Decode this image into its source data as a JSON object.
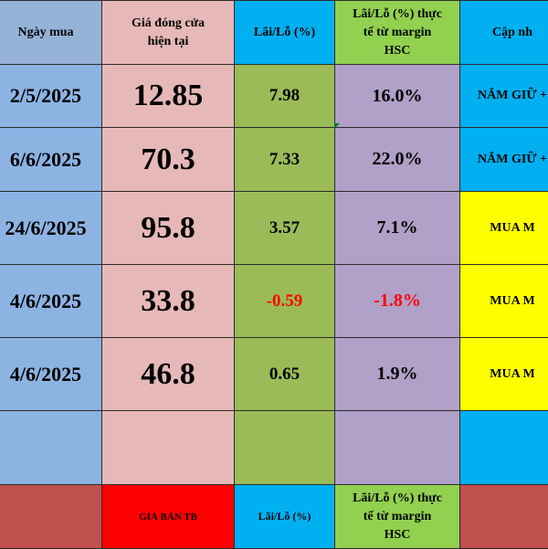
{
  "headers": {
    "date": "Ngày mua",
    "price": "Giá đóng cửa\nhiện tại",
    "pl": "Lãi/Lỗ (%)",
    "real": "Lãi/Lỗ (%) thực\ntế từ margin\nHSC",
    "update": "Cập nh"
  },
  "rows": [
    {
      "date": "2/5/2025",
      "price": "12.85",
      "pl": "7.98",
      "real": "16.0%",
      "update": "NẮM GIỮ +"
    },
    {
      "date": "6/6/2025",
      "price": "70.3",
      "pl": "7.33",
      "real": "22.0%",
      "update": "NẮM GIỮ +"
    },
    {
      "date": "24/6/2025",
      "price": "95.8",
      "pl": "3.57",
      "real": "7.1%",
      "update": "MUA M"
    },
    {
      "date": "4/6/2025",
      "price": "33.8",
      "pl": "-0.59",
      "real": "-1.8%",
      "update": "MUA M"
    },
    {
      "date": "4/6/2025",
      "price": "46.8",
      "pl": "0.65",
      "real": "1.9%",
      "update": "MUA M"
    }
  ],
  "footer": {
    "price": "GIÁ BÁN TB",
    "pl": "Lãi/Lỗ (%)",
    "real": "Lãi/Lỗ (%) thực\ntế từ margin\nHSC"
  },
  "colors": {
    "date_col": "#8db3e2",
    "price_col": "#e6b9b8",
    "pl_col": "#9bbb59",
    "real_col": "#b1a0c7",
    "header_blue": "#00b0f0",
    "header_green": "#92d050",
    "update_yellow": "#ffff00",
    "footer_red": "#c0504d",
    "negative_text": "#ff0000"
  }
}
